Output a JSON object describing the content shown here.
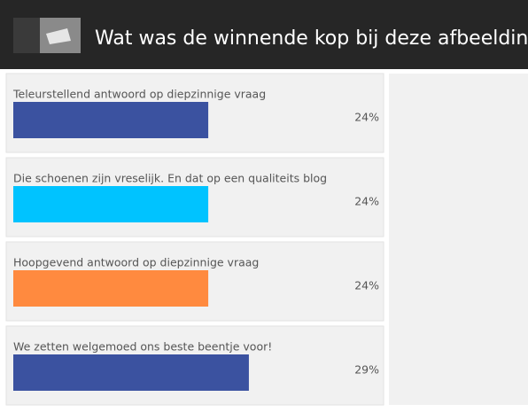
{
  "chart_data": {
    "type": "bar",
    "title": "Wat was de winnende kop bij deze afbeelding?",
    "categories": [
      "Teleurstellend antwoord op diepzinnige vraag",
      "Die schoenen zijn vreselijk. En dat op een qualiteits blog",
      "Hoopgevend antwoord op diepzinnige vraag",
      "We zetten welgemoed ons beste beentje voor!"
    ],
    "series": [
      {
        "values": [
          24,
          24,
          24,
          29
        ],
        "value_labels": [
          "24%",
          "24%",
          "24%",
          "29%"
        ],
        "colors": [
          "#3b52a0",
          "#00c3ff",
          "#ff8a3f",
          "#3b52a0"
        ]
      }
    ]
  }
}
